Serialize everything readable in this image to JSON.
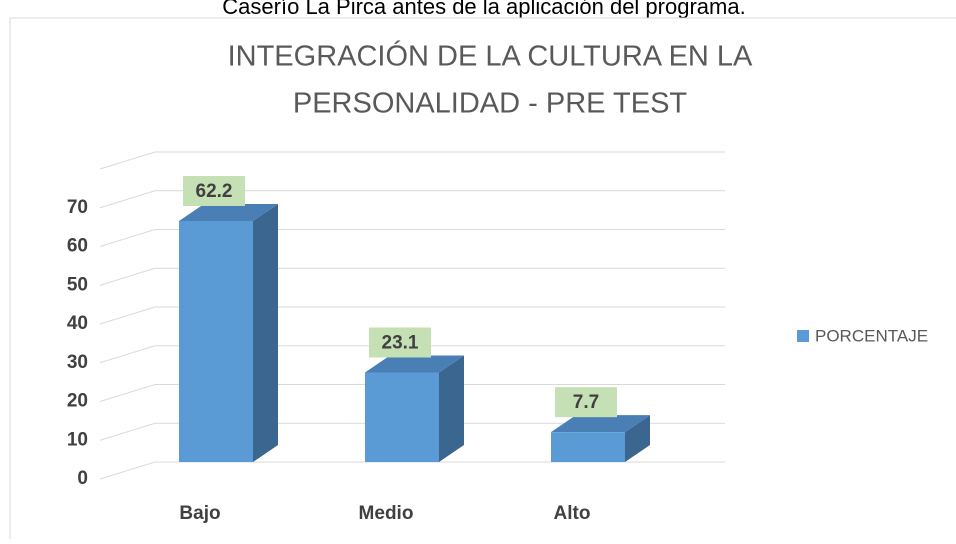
{
  "caption": "Caserío La Pirca antes de la aplicación del programa.",
  "chart_data": {
    "type": "bar3d",
    "title": "INTEGRACIÓN DE LA CULTURA EN LA",
    "subtitle": "PERSONALIDAD - PRE TEST",
    "categories": [
      "Bajo",
      "Medio",
      "Alto"
    ],
    "series": [
      {
        "name": "PORCENTAJE",
        "color": "#5b9bd5",
        "values": [
          62.2,
          23.1,
          7.7
        ]
      }
    ],
    "ylim": [
      0,
      80
    ],
    "yticks": [
      0,
      10,
      20,
      30,
      40,
      50,
      60,
      70
    ],
    "grid": true,
    "legend": "right"
  }
}
